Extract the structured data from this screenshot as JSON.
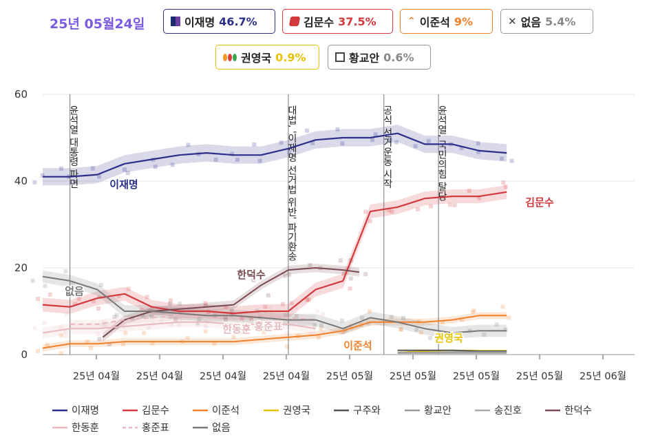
{
  "header": {
    "date": "25년 05월24일",
    "pills": [
      {
        "name": "이재명",
        "pct": "46.7%",
        "color": "#2b2f8a",
        "icon": "square"
      },
      {
        "name": "김문수",
        "pct": "37.5%",
        "color": "#d2383c",
        "icon": "red-diamond"
      },
      {
        "name": "이준석",
        "pct": "9%",
        "color": "#f0802a",
        "icon": "chevron-up"
      },
      {
        "name": "없음",
        "pct": "5.4%",
        "color": "#888888",
        "icon": "x"
      },
      {
        "name": "권영국",
        "pct": "0.9%",
        "color": "#e8c200",
        "icon": "dots"
      },
      {
        "name": "황교안",
        "pct": "0.6%",
        "color": "#888888",
        "icon": "hollow-square"
      }
    ]
  },
  "chart_data": {
    "type": "line",
    "title": "",
    "xlabel": "",
    "ylabel": "",
    "ylim": [
      0,
      60
    ],
    "yticks": [
      "0",
      "20",
      "40",
      "60"
    ],
    "xticks": [
      "25년 04월",
      "25년 04월",
      "25년 04월",
      "25년 04월",
      "25년 05월",
      "25년 05월",
      "25년 05월",
      "25년 05월",
      "25년 06월"
    ],
    "grid": true,
    "legend_position": "bottom",
    "events": [
      {
        "label": "윤석열 대통령 파면",
        "x": 1
      },
      {
        "label": "대법, '이재명 선거법 위반' 파기환송",
        "x": 9
      },
      {
        "label": "공식 선거운동 시작",
        "x": 12.5
      },
      {
        "label": "윤석열, 국민의힘 탈당",
        "x": 14.5
      }
    ],
    "series": [
      {
        "name": "이재명",
        "color": "#2b2f8a",
        "label": "이재명",
        "x": [
          0,
          1,
          2,
          3,
          4,
          5,
          6,
          7,
          8,
          9,
          10,
          11,
          12,
          13,
          14,
          15,
          16,
          17
        ],
        "values": [
          41,
          41,
          41.5,
          44,
          45,
          46,
          46.5,
          46,
          46,
          47.5,
          49.5,
          50,
          50,
          51,
          48.5,
          48.5,
          47,
          46.5
        ]
      },
      {
        "name": "김문수",
        "color": "#d2383c",
        "label": "김문수",
        "x": [
          0,
          1,
          2,
          3,
          4,
          5,
          6,
          7,
          8,
          9,
          10,
          11,
          12,
          13,
          14,
          15,
          16,
          17
        ],
        "values": [
          11.5,
          11,
          13,
          14,
          11,
          10,
          10,
          9.5,
          10,
          10,
          15,
          17,
          33,
          34,
          36,
          36.5,
          36.5,
          37.5
        ]
      },
      {
        "name": "이준석",
        "color": "#f0802a",
        "label": "이준석",
        "x": [
          0,
          1,
          2,
          3,
          4,
          5,
          6,
          7,
          8,
          9,
          10,
          11,
          12,
          13,
          14,
          15,
          16,
          17
        ],
        "values": [
          1.5,
          2.5,
          2.5,
          3,
          3,
          3,
          3,
          3,
          3.5,
          4,
          4.5,
          5.5,
          7.5,
          7.5,
          7.5,
          8,
          9,
          9
        ]
      },
      {
        "name": "권영국",
        "color": "#e8c200",
        "label": "권영국",
        "x": [
          13,
          14,
          15,
          16,
          17
        ],
        "values": [
          0.5,
          0.8,
          1,
          0.9,
          0.9
        ]
      },
      {
        "name": "구주와",
        "color": "#555555",
        "label": "",
        "x": [
          13,
          14,
          15,
          16,
          17
        ],
        "values": [
          1,
          1,
          1,
          0.8,
          0.8
        ]
      },
      {
        "name": "황교안",
        "color": "#999999",
        "label": "",
        "x": [
          13,
          14,
          15,
          16,
          17
        ],
        "values": [
          0.5,
          0.5,
          0.6,
          0.6,
          0.6
        ]
      },
      {
        "name": "송진호",
        "color": "#aaaaaa",
        "label": "",
        "x": [
          13,
          14,
          15,
          16,
          17
        ],
        "values": [
          0.3,
          0.3,
          0.3,
          0.3,
          0.3
        ]
      },
      {
        "name": "한덕수",
        "color": "#7a4a52",
        "label": "한덕수",
        "x": [
          2.2,
          3,
          4,
          5,
          6,
          7,
          8,
          9,
          10,
          11,
          11.6
        ],
        "values": [
          4,
          8,
          10,
          10.5,
          11,
          11.5,
          16,
          19.5,
          20,
          19.5,
          19
        ]
      },
      {
        "name": "한동훈",
        "color": "#e7b9bf",
        "label": "한동훈",
        "x": [
          0,
          1,
          2,
          3,
          4,
          5,
          6,
          7,
          8,
          9,
          10
        ],
        "values": [
          5,
          6,
          6,
          6.5,
          7,
          7.5,
          7.5,
          7,
          7,
          7,
          6
        ]
      },
      {
        "name": "홍준표",
        "color": "#e7b9bf",
        "label": "홍준표",
        "x": [
          1,
          2,
          3,
          4,
          5,
          6,
          7,
          8,
          9,
          10
        ],
        "values": [
          7,
          7,
          8,
          8.5,
          9,
          9,
          9,
          9,
          8.5,
          8
        ]
      },
      {
        "name": "없음",
        "color": "#777777",
        "label": "없음",
        "x": [
          0,
          1,
          2,
          3,
          4,
          5,
          6,
          7,
          8,
          9,
          10,
          11,
          12,
          13,
          14,
          15,
          16,
          17
        ],
        "values": [
          18,
          17,
          15,
          10,
          10,
          9.5,
          9,
          9,
          8.5,
          8,
          8,
          6,
          8.5,
          7.5,
          6,
          5,
          5.5,
          5.5
        ]
      }
    ]
  },
  "legend": [
    {
      "name": "이재명",
      "color": "#2b2f8a",
      "dash": false
    },
    {
      "name": "김문수",
      "color": "#d2383c",
      "dash": false
    },
    {
      "name": "이준석",
      "color": "#f0802a",
      "dash": false
    },
    {
      "name": "권영국",
      "color": "#e8c200",
      "dash": false
    },
    {
      "name": "구주와",
      "color": "#555555",
      "dash": false
    },
    {
      "name": "황교안",
      "color": "#999999",
      "dash": false
    },
    {
      "name": "송진호",
      "color": "#aaaaaa",
      "dash": false
    },
    {
      "name": "한덕수",
      "color": "#7a4a52",
      "dash": false
    },
    {
      "name": "한동훈",
      "color": "#e7b9bf",
      "dash": false
    },
    {
      "name": "홍준표",
      "color": "#e7b9bf",
      "dash": true
    },
    {
      "name": "없음",
      "color": "#777777",
      "dash": false
    }
  ]
}
